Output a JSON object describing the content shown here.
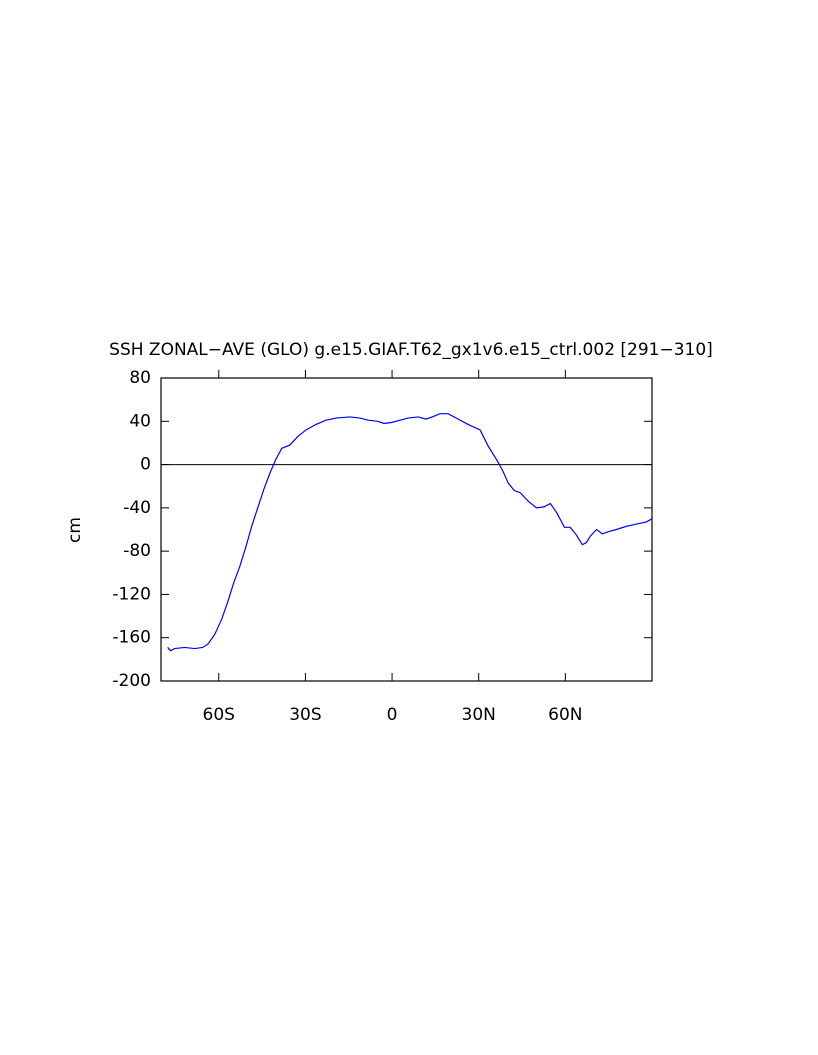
{
  "chart_data": {
    "type": "line",
    "title": "SSH ZONAL−AVE (GLO) g.e15.GIAF.T62_gx1v6.e15_ctrl.002 [291−310]",
    "ylabel": "cm",
    "xlim": [
      -80,
      90
    ],
    "ylim": [
      -200,
      80
    ],
    "yticks": [
      -200,
      -160,
      -120,
      -80,
      -40,
      0,
      40,
      80
    ],
    "xticks": [
      {
        "value": -60,
        "label": "60S"
      },
      {
        "value": -30,
        "label": "30S"
      },
      0,
      {
        "value": 30,
        "label": "30N"
      },
      {
        "value": 60,
        "label": "60N"
      }
    ],
    "reference_line": 0,
    "x": [
      -77.7,
      -76.7,
      -75.3,
      -71.8,
      -68.3,
      -65.6,
      -63.8,
      -61.4,
      -59,
      -56.9,
      -54.8,
      -52.7,
      -50.6,
      -48.6,
      -46.5,
      -44.4,
      -42.3,
      -40.2,
      -38.2,
      -35.4,
      -32.6,
      -29.8,
      -26.4,
      -22.9,
      -19.4,
      -14.6,
      -11.1,
      -8.3,
      -4.9,
      -2.8,
      0,
      2.8,
      5.5,
      9,
      11.8,
      13.9,
      16.6,
      19.4,
      22.9,
      26.4,
      30.5,
      33.3,
      36.1,
      38.2,
      40.2,
      42.3,
      44.4,
      47.2,
      50,
      52.7,
      54.8,
      56.9,
      59.7,
      61.7,
      63.8,
      65.9,
      67.3,
      68.7,
      70.8,
      72.8,
      74.9,
      77.7,
      81.2,
      84.6,
      88.1,
      90
    ],
    "series": [
      {
        "color": "#0000ff",
        "values": [
          -169,
          -172,
          -170,
          -169,
          -170,
          -169,
          -166,
          -157,
          -143,
          -127,
          -109,
          -94,
          -76,
          -57,
          -40,
          -23,
          -8,
          5,
          15,
          18,
          26,
          32,
          37,
          41,
          43,
          44,
          43,
          41,
          40,
          38,
          39,
          41,
          43,
          44,
          42,
          44,
          47,
          47,
          42,
          37,
          32,
          17,
          5,
          -5,
          -17,
          -24,
          -26,
          -34,
          -40,
          -39,
          -36,
          -44,
          -58,
          -58,
          -65,
          -74,
          -72,
          -66,
          -60,
          -64,
          -62,
          -60,
          -57,
          -55,
          -53,
          -50
        ]
      }
    ]
  }
}
